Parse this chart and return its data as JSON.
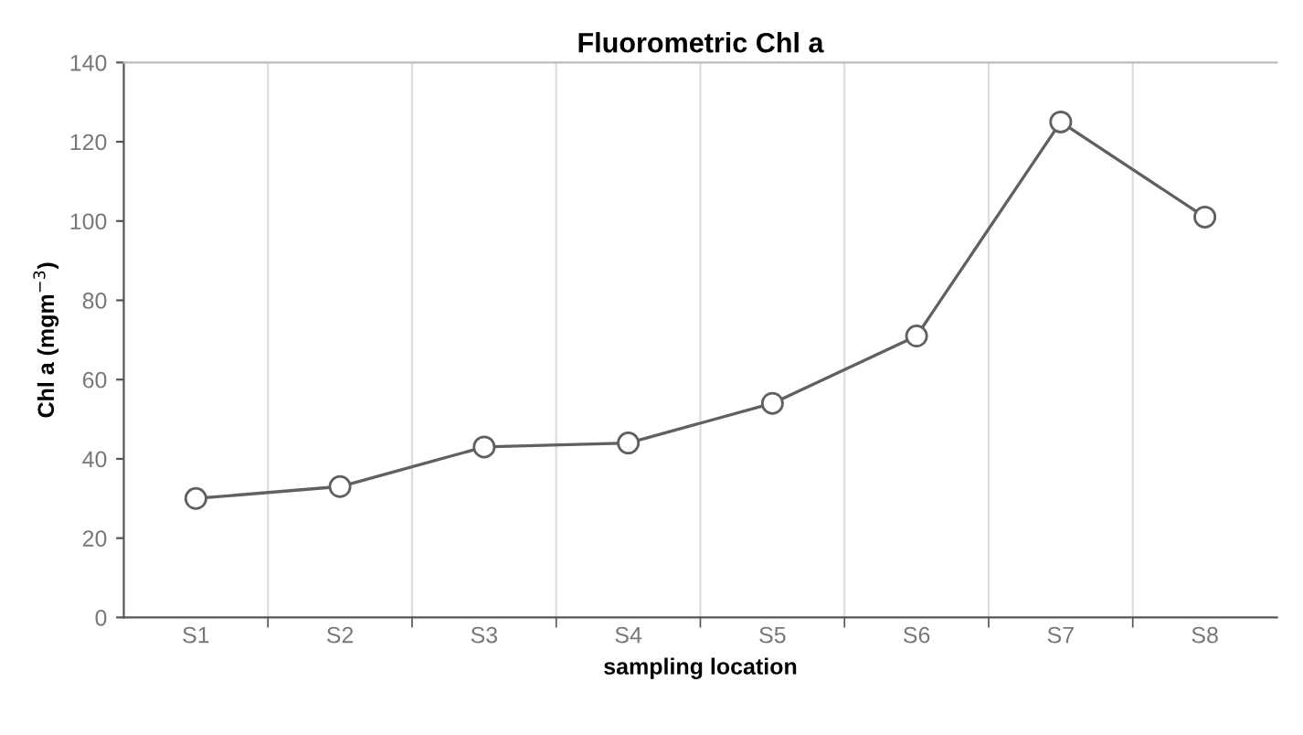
{
  "chart_data": {
    "type": "line",
    "title": "Fluorometric Chl a",
    "xlabel": "sampling location",
    "ylabel": "Chl a (mgm$^{−3}$)",
    "categories": [
      "S1",
      "S2",
      "S3",
      "S4",
      "S5",
      "S6",
      "S7",
      "S8"
    ],
    "series": [
      {
        "color": "#606060",
        "values": [
          30,
          33,
          43,
          44,
          54,
          71,
          125,
          101
        ]
      }
    ],
    "ylim": [
      0,
      140
    ],
    "yticks": [
      0,
      20,
      40,
      60,
      80,
      100,
      120,
      140
    ],
    "grid": "x",
    "marker": "circle",
    "line_style": "solid"
  }
}
